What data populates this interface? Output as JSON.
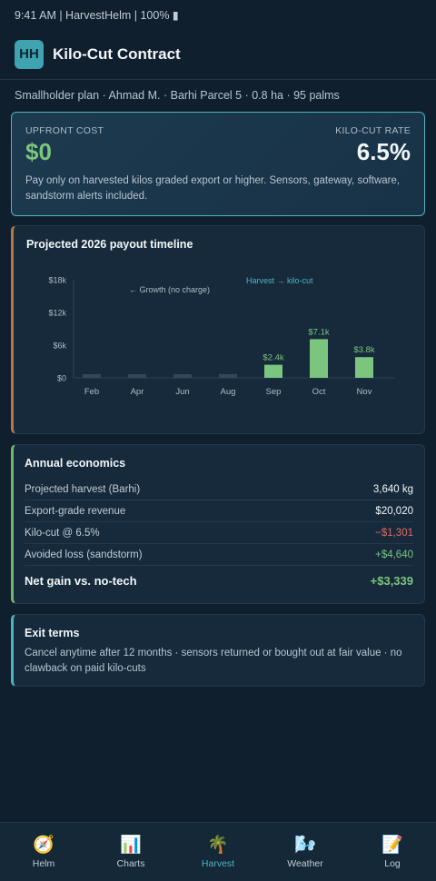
{
  "status_bar": {
    "text": "9:41 AM | HarvestHelm | 100% ▮"
  },
  "header": {
    "logo": "HH",
    "title": "Kilo-Cut Contract"
  },
  "subline": "Smallholder plan · Ahmad M. · Barhi Parcel 5 · 0.8 ha · 95 palms",
  "hero": {
    "cost_label": "UPFRONT COST",
    "cost_value": "$0",
    "rate_label": "KILO-CUT RATE",
    "rate_value": "6.5%",
    "description": "Pay only on harvested kilos graded export or higher. Sensors, gateway, software, sandstorm alerts included."
  },
  "chart_card": {
    "title": "Projected 2026 payout timeline"
  },
  "chart_data": {
    "type": "bar",
    "categories": [
      "Feb",
      "Apr",
      "Jun",
      "Aug",
      "Sep",
      "Oct",
      "Nov"
    ],
    "values": [
      0,
      0,
      0,
      0,
      2400,
      7100,
      3800
    ],
    "data_labels": [
      "",
      "",
      "",
      "",
      "$2.4k",
      "$7.1k",
      "$3.8k"
    ],
    "y_ticks": [
      0,
      6000,
      12000,
      18000
    ],
    "y_tick_labels": [
      "$0",
      "$6k",
      "$12k",
      "$18k"
    ],
    "ylim": [
      0,
      18000
    ],
    "annotations": {
      "growth": "← Growth (no charge)",
      "harvest": "Harvest → kilo-cut"
    },
    "colors": {
      "harvest_bar": "#7cc57f",
      "growth_bar": "#33475a",
      "harvest_annotation": "#4fb3c3"
    }
  },
  "economics": {
    "title": "Annual economics",
    "rows": [
      {
        "label": "Projected harvest (Barhi)",
        "value": "3,640 kg"
      },
      {
        "label": "Export-grade revenue",
        "value": "$20,020"
      },
      {
        "label": "Kilo-cut @ 6.5%",
        "value": "−$1,301"
      },
      {
        "label": "Avoided loss (sandstorm)",
        "value": "+$4,640"
      }
    ],
    "total": {
      "label": "Net gain vs. no-tech",
      "value": "+$3,339"
    }
  },
  "exit_terms": {
    "title": "Exit terms",
    "text": "Cancel anytime after 12 months · sensors returned or bought out at fair value · no clawback on paid kilo-cuts"
  },
  "nav": {
    "items": [
      {
        "label": "Helm",
        "icon": "🧭"
      },
      {
        "label": "Charts",
        "icon": "📊"
      },
      {
        "label": "Harvest",
        "icon": "🌴"
      },
      {
        "label": "Weather",
        "icon": "🌬️"
      },
      {
        "label": "Log",
        "icon": "📝"
      }
    ]
  }
}
